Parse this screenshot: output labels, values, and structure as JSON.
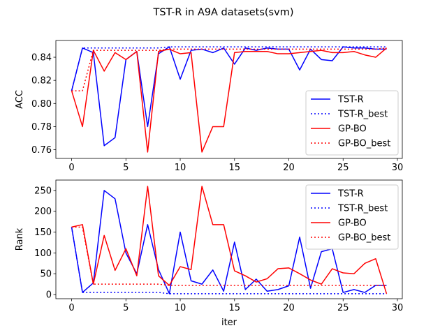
{
  "figure": {
    "title": "TST-R in A9A datasets(svm)"
  },
  "chart_data": [
    {
      "type": "line",
      "title": "",
      "xlabel": "",
      "ylabel": "ACC",
      "xlim": [
        -1.45,
        30.45
      ],
      "ylim": [
        0.7525,
        0.8545
      ],
      "xticks": [
        0,
        5,
        10,
        15,
        20,
        25,
        30
      ],
      "yticks": [
        0.76,
        0.78,
        0.8,
        0.82,
        0.84
      ],
      "ytick_labels": [
        "0.76",
        "0.78",
        "0.80",
        "0.82",
        "0.84"
      ],
      "legend": "lower-right",
      "x": [
        0,
        1,
        2,
        3,
        4,
        5,
        6,
        7,
        8,
        9,
        10,
        11,
        12,
        13,
        14,
        15,
        16,
        17,
        18,
        19,
        20,
        21,
        22,
        23,
        24,
        25,
        26,
        27,
        28,
        29
      ],
      "series": [
        {
          "name": "TST-R",
          "color": "#0000ff",
          "style": "solid",
          "values": [
            0.811,
            0.848,
            0.844,
            0.7635,
            0.7705,
            0.838,
            0.845,
            0.78,
            0.843,
            0.849,
            0.821,
            0.846,
            0.847,
            0.844,
            0.848,
            0.834,
            0.848,
            0.846,
            0.848,
            0.847,
            0.847,
            0.829,
            0.847,
            0.838,
            0.837,
            0.849,
            0.848,
            0.848,
            0.847,
            0.847
          ]
        },
        {
          "name": "TST-R_best",
          "color": "#0000ff",
          "style": "dotted",
          "values": [
            0.811,
            0.848,
            0.848,
            0.848,
            0.848,
            0.848,
            0.848,
            0.848,
            0.848,
            0.849,
            0.849,
            0.849,
            0.849,
            0.849,
            0.849,
            0.849,
            0.849,
            0.849,
            0.849,
            0.849,
            0.849,
            0.849,
            0.849,
            0.849,
            0.849,
            0.849,
            0.849,
            0.849,
            0.849,
            0.849
          ]
        },
        {
          "name": "GP-BO",
          "color": "#ff0000",
          "style": "solid",
          "values": [
            0.811,
            0.78,
            0.846,
            0.828,
            0.844,
            0.838,
            0.845,
            0.758,
            0.845,
            0.847,
            0.843,
            0.844,
            0.758,
            0.78,
            0.78,
            0.844,
            0.845,
            0.845,
            0.845,
            0.843,
            0.843,
            0.844,
            0.845,
            0.846,
            0.844,
            0.844,
            0.845,
            0.842,
            0.84,
            0.848
          ]
        },
        {
          "name": "GP-BO_best",
          "color": "#ff0000",
          "style": "dotted",
          "values": [
            0.811,
            0.811,
            0.846,
            0.846,
            0.846,
            0.846,
            0.846,
            0.846,
            0.846,
            0.847,
            0.847,
            0.847,
            0.847,
            0.847,
            0.847,
            0.847,
            0.847,
            0.847,
            0.847,
            0.847,
            0.847,
            0.847,
            0.847,
            0.847,
            0.847,
            0.847,
            0.847,
            0.847,
            0.847,
            0.848
          ]
        }
      ]
    },
    {
      "type": "line",
      "title": "",
      "xlabel": "iter",
      "ylabel": "Rank",
      "xlim": [
        -1.45,
        30.45
      ],
      "ylim": [
        -10,
        275
      ],
      "xticks": [
        0,
        5,
        10,
        15,
        20,
        25,
        30
      ],
      "yticks": [
        0,
        50,
        100,
        150,
        200,
        250
      ],
      "ytick_labels": [
        "0",
        "50",
        "100",
        "150",
        "200",
        "250"
      ],
      "legend": "top-right",
      "x": [
        0,
        1,
        2,
        3,
        4,
        5,
        6,
        7,
        8,
        9,
        10,
        11,
        12,
        13,
        14,
        15,
        16,
        17,
        18,
        19,
        20,
        21,
        22,
        23,
        24,
        25,
        26,
        27,
        28,
        29
      ],
      "series": [
        {
          "name": "TST-R",
          "color": "#0000ff",
          "style": "solid",
          "values": [
            162,
            5,
            28,
            250,
            230,
            100,
            50,
            168,
            60,
            2,
            150,
            33,
            25,
            59,
            8,
            126,
            12,
            37,
            8,
            12,
            21,
            138,
            15,
            103,
            110,
            5,
            12,
            5,
            22,
            22
          ]
        },
        {
          "name": "TST-R_best",
          "color": "#0000ff",
          "style": "dotted",
          "values": [
            162,
            5,
            5,
            5,
            5,
            5,
            5,
            5,
            5,
            2,
            2,
            2,
            2,
            2,
            2,
            2,
            2,
            2,
            2,
            2,
            2,
            2,
            2,
            2,
            2,
            2,
            2,
            2,
            2,
            2
          ]
        },
        {
          "name": "GP-BO",
          "color": "#ff0000",
          "style": "solid",
          "values": [
            162,
            168,
            25,
            142,
            58,
            110,
            45,
            260,
            45,
            22,
            67,
            60,
            260,
            168,
            168,
            57,
            45,
            30,
            38,
            62,
            64,
            50,
            35,
            25,
            62,
            52,
            50,
            75,
            86,
            2
          ]
        },
        {
          "name": "GP-BO_best",
          "color": "#ff0000",
          "style": "dotted",
          "values": [
            162,
            162,
            25,
            25,
            25,
            25,
            25,
            25,
            25,
            22,
            22,
            22,
            22,
            22,
            22,
            22,
            22,
            22,
            22,
            22,
            22,
            22,
            22,
            22,
            22,
            22,
            22,
            22,
            22,
            22
          ]
        }
      ]
    }
  ]
}
